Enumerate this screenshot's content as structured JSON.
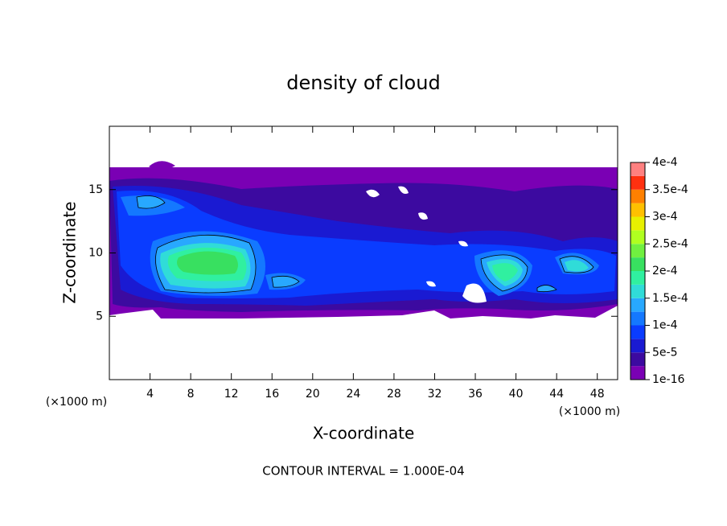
{
  "chart_data": {
    "type": "contour",
    "title": "density of cloud",
    "x_label": "X-coordinate",
    "y_label": "Z-coordinate",
    "x_unit": "(×1000 m)",
    "y_unit": "(×1000 m)",
    "footer": "CONTOUR INTERVAL = 1.000E-04",
    "xlim": [
      0,
      50
    ],
    "xticks": [
      4,
      8,
      12,
      16,
      20,
      24,
      28,
      32,
      36,
      40,
      44,
      48
    ],
    "ylim": [
      0,
      20
    ],
    "yticks": [
      5,
      10,
      15
    ],
    "colorbar": {
      "ticks": [
        {
          "value": 1e-16,
          "label": "1e-16"
        },
        {
          "value": 5e-05,
          "label": "5e-5"
        },
        {
          "value": 0.0001,
          "label": "1e-4"
        },
        {
          "value": 0.00015,
          "label": "1.5e-4"
        },
        {
          "value": 0.0002,
          "label": "2e-4"
        },
        {
          "value": 0.00025,
          "label": "2.5e-4"
        },
        {
          "value": 0.0003,
          "label": "3e-4"
        },
        {
          "value": 0.00035,
          "label": "3.5e-4"
        },
        {
          "value": 0.0004,
          "label": "4e-4"
        }
      ],
      "colors": [
        "#7a00b4",
        "#3c0aa0",
        "#1a1ad2",
        "#0a3cff",
        "#1478ff",
        "#28a8ff",
        "#30dcd8",
        "#30f0a0",
        "#38e060",
        "#70f040",
        "#b0ff20",
        "#e8f000",
        "#ffc000",
        "#ff8000",
        "#ff3010",
        "#ff8080"
      ]
    }
  }
}
